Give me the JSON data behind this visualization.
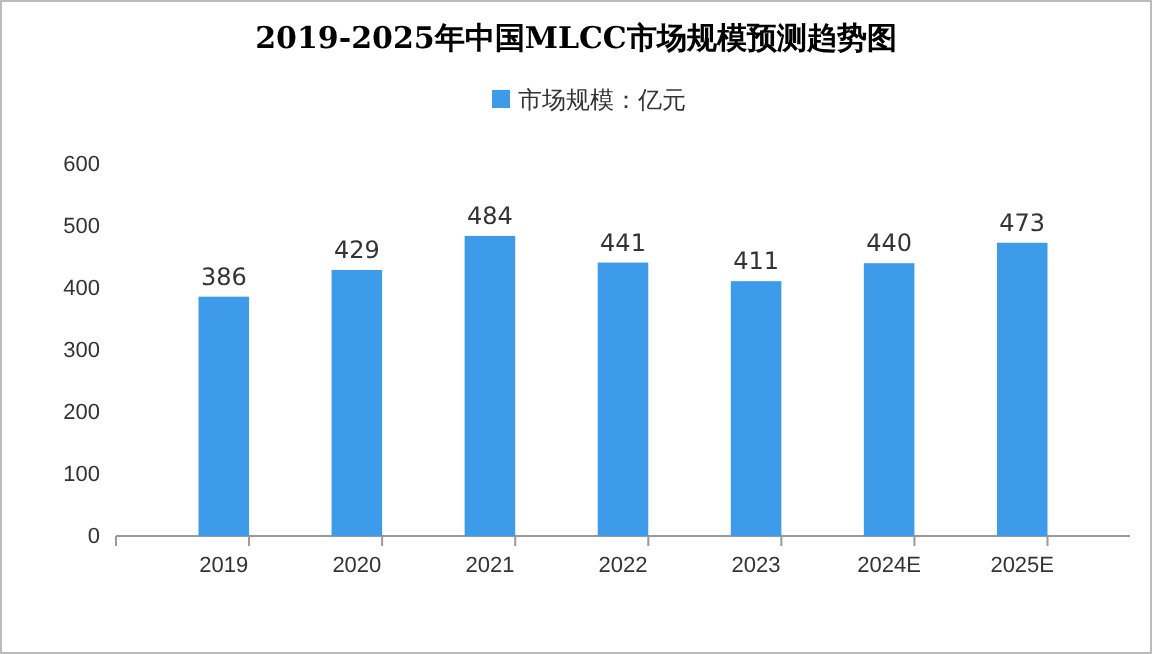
{
  "chart_data": {
    "type": "bar",
    "title": "2019-2025年中国MLCC市场规模预测趋势图",
    "categories": [
      "2019",
      "2020",
      "2021",
      "2022",
      "2023",
      "2024E",
      "2025E"
    ],
    "series": [
      {
        "name": "市场规模：亿元",
        "color": "#3d9be9",
        "values": [
          386,
          429,
          484,
          441,
          411,
          440,
          473
        ]
      }
    ],
    "ylim": [
      0,
      600
    ],
    "yticks": [
      0,
      100,
      200,
      300,
      400,
      500,
      600
    ],
    "grid": false,
    "legend": "top",
    "data_labels": true
  }
}
